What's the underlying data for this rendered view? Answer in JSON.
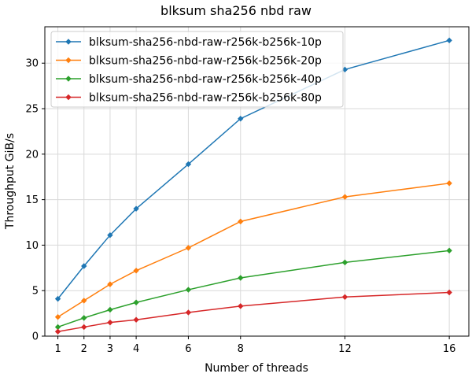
{
  "chart_data": {
    "type": "line",
    "title": "blksum sha256 nbd raw",
    "xlabel": "Number of threads",
    "ylabel": "Throughput GiB/s",
    "x": [
      1,
      2,
      3,
      4,
      6,
      8,
      12,
      16
    ],
    "xticks": [
      1,
      2,
      3,
      4,
      6,
      8,
      12,
      16
    ],
    "xlim": [
      0.5,
      16.75
    ],
    "ylim": [
      0,
      34
    ],
    "yticks": [
      0,
      5,
      10,
      15,
      20,
      25,
      30
    ],
    "grid": true,
    "legend_position": "top-left",
    "series": [
      {
        "name": "blksum-sha256-nbd-raw-r256k-b256k-10p",
        "color": "#1f77b4",
        "values": [
          4.1,
          7.7,
          11.1,
          14.0,
          18.9,
          23.9,
          29.3,
          32.5
        ]
      },
      {
        "name": "blksum-sha256-nbd-raw-r256k-b256k-20p",
        "color": "#ff7f0e",
        "values": [
          2.1,
          3.9,
          5.7,
          7.2,
          9.7,
          12.6,
          15.3,
          16.8
        ]
      },
      {
        "name": "blksum-sha256-nbd-raw-r256k-b256k-40p",
        "color": "#2ca02c",
        "values": [
          1.0,
          2.0,
          2.9,
          3.7,
          5.1,
          6.4,
          8.1,
          9.4
        ]
      },
      {
        "name": "blksum-sha256-nbd-raw-r256k-b256k-80p",
        "color": "#d62728",
        "values": [
          0.5,
          1.0,
          1.5,
          1.8,
          2.6,
          3.3,
          4.3,
          4.8
        ]
      }
    ]
  }
}
